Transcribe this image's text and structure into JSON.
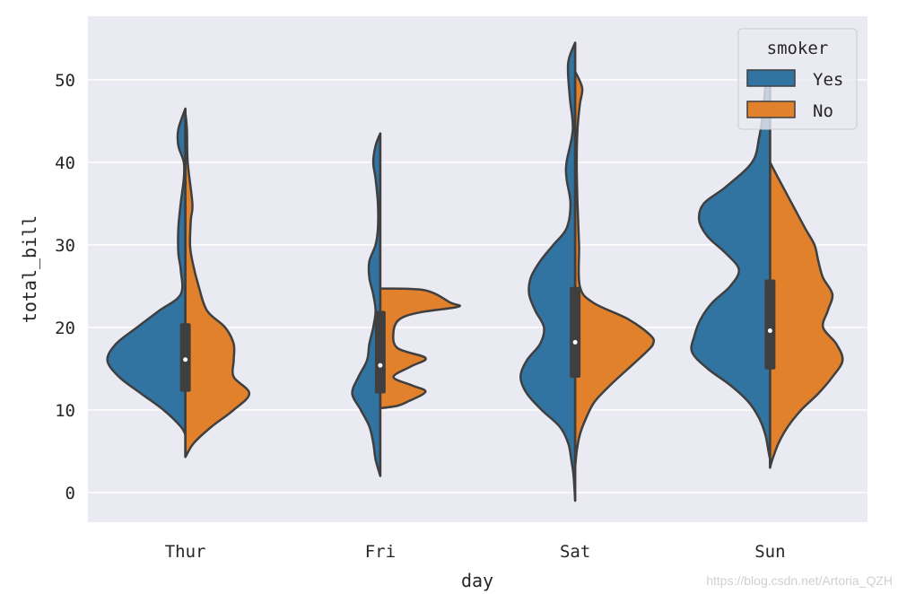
{
  "chart_data": {
    "type": "violin",
    "split": true,
    "xlabel": "day",
    "ylabel": "total_bill",
    "categories": [
      "Thur",
      "Fri",
      "Sat",
      "Sun"
    ],
    "yticks": [
      0,
      10,
      20,
      30,
      40,
      50
    ],
    "ylim": [
      -3.6,
      57.7
    ],
    "grid": true,
    "legend": {
      "title": "smoker",
      "placement": "top-right",
      "entries": [
        "Yes",
        "No"
      ]
    },
    "colors": {
      "Yes": "#3274a1",
      "No": "#e1812c",
      "edge": "#3f3f3f",
      "background": "#eaeaf2"
    },
    "density_note": "relative density, percent of max",
    "violins": [
      {
        "day": "Thur",
        "Yes": [
          [
            46.5,
            0
          ],
          [
            44,
            9
          ],
          [
            42,
            9
          ],
          [
            40,
            2
          ],
          [
            38,
            2
          ],
          [
            35,
            6
          ],
          [
            32,
            9
          ],
          [
            29,
            9
          ],
          [
            27,
            6
          ],
          [
            24,
            6
          ],
          [
            22,
            34
          ],
          [
            20,
            62
          ],
          [
            18,
            89
          ],
          [
            16,
            100
          ],
          [
            14,
            85
          ],
          [
            12,
            57
          ],
          [
            10,
            28
          ],
          [
            8,
            6
          ],
          [
            7,
            0
          ]
        ],
        "No": [
          [
            46,
            0
          ],
          [
            44,
            2
          ],
          [
            40,
            3
          ],
          [
            35,
            9
          ],
          [
            33,
            7
          ],
          [
            30,
            6
          ],
          [
            28,
            9
          ],
          [
            25,
            17
          ],
          [
            22,
            28
          ],
          [
            20,
            51
          ],
          [
            18,
            62
          ],
          [
            16,
            62
          ],
          [
            14,
            62
          ],
          [
            12,
            82
          ],
          [
            10,
            62
          ],
          [
            8,
            34
          ],
          [
            6,
            11
          ],
          [
            4.3,
            0
          ]
        ],
        "box": {
          "min": 4.3,
          "q1": 12.2,
          "median": 16.1,
          "q3": 20.5,
          "max": 46.5
        }
      },
      {
        "day": "Fri",
        "Yes": [
          [
            43.5,
            0
          ],
          [
            42,
            6
          ],
          [
            40,
            9
          ],
          [
            38,
            6
          ],
          [
            35,
            3
          ],
          [
            32,
            3
          ],
          [
            30,
            6
          ],
          [
            28,
            14
          ],
          [
            26,
            14
          ],
          [
            24,
            9
          ],
          [
            22,
            6
          ],
          [
            20,
            9
          ],
          [
            18,
            14
          ],
          [
            16,
            17
          ],
          [
            14,
            28
          ],
          [
            12,
            36
          ],
          [
            10,
            25
          ],
          [
            8,
            14
          ],
          [
            6,
            9
          ],
          [
            4,
            6
          ],
          [
            2,
            0
          ]
        ],
        "No": [
          [
            24.7,
            0
          ],
          [
            24.5,
            57
          ],
          [
            23,
            90
          ],
          [
            22.5,
            100
          ],
          [
            21.8,
            50
          ],
          [
            21,
            25
          ],
          [
            19.5,
            17
          ],
          [
            17.5,
            22
          ],
          [
            16.3,
            58
          ],
          [
            15.3,
            40
          ],
          [
            14,
            17
          ],
          [
            13,
            40
          ],
          [
            12.2,
            58
          ],
          [
            11,
            35
          ],
          [
            10.5,
            22
          ],
          [
            10.2,
            0
          ]
        ],
        "box": {
          "min": 2,
          "q1": 12,
          "median": 15.4,
          "q3": 22,
          "max": 43.5
        }
      },
      {
        "day": "Sat",
        "Yes": [
          [
            54.5,
            0
          ],
          [
            52,
            9
          ],
          [
            48,
            7
          ],
          [
            44,
            3
          ],
          [
            40,
            11
          ],
          [
            38,
            11
          ],
          [
            35,
            6
          ],
          [
            32,
            11
          ],
          [
            30,
            28
          ],
          [
            28,
            45
          ],
          [
            26,
            57
          ],
          [
            24,
            59
          ],
          [
            22,
            51
          ],
          [
            20,
            40
          ],
          [
            18,
            45
          ],
          [
            16,
            62
          ],
          [
            14,
            70
          ],
          [
            12,
            62
          ],
          [
            10,
            43
          ],
          [
            8,
            20
          ],
          [
            6,
            9
          ],
          [
            4,
            5
          ],
          [
            2,
            2
          ],
          [
            -1,
            0
          ]
        ],
        "No": [
          [
            51,
            0
          ],
          [
            49,
            9
          ],
          [
            47,
            6
          ],
          [
            44,
            3
          ],
          [
            40,
            2
          ],
          [
            35,
            3
          ],
          [
            30,
            5
          ],
          [
            25,
            6
          ],
          [
            23,
            23
          ],
          [
            21,
            68
          ],
          [
            19,
            97
          ],
          [
            18,
            100
          ],
          [
            17,
            91
          ],
          [
            15,
            68
          ],
          [
            13,
            45
          ],
          [
            11,
            25
          ],
          [
            9,
            14
          ],
          [
            7,
            6
          ],
          [
            5,
            2
          ],
          [
            3,
            0
          ]
        ],
        "box": {
          "min": -1,
          "q1": 13.9,
          "median": 18.2,
          "q3": 24.9,
          "max": 54.5
        }
      },
      {
        "day": "Sun",
        "Yes": [
          [
            51,
            0
          ],
          [
            49,
            6
          ],
          [
            46,
            9
          ],
          [
            43,
            14
          ],
          [
            40,
            23
          ],
          [
            37,
            57
          ],
          [
            35,
            85
          ],
          [
            33,
            91
          ],
          [
            31,
            80
          ],
          [
            29,
            57
          ],
          [
            27,
            40
          ],
          [
            25,
            51
          ],
          [
            23,
            74
          ],
          [
            21,
            89
          ],
          [
            19,
            97
          ],
          [
            17,
            100
          ],
          [
            15,
            80
          ],
          [
            13,
            51
          ],
          [
            11,
            28
          ],
          [
            9,
            14
          ],
          [
            7,
            6
          ],
          [
            5,
            2
          ],
          [
            4,
            0
          ]
        ],
        "No": [
          [
            40,
            0
          ],
          [
            38,
            11
          ],
          [
            35,
            28
          ],
          [
            32,
            45
          ],
          [
            30,
            57
          ],
          [
            28,
            62
          ],
          [
            26,
            68
          ],
          [
            24,
            80
          ],
          [
            22,
            74
          ],
          [
            20,
            68
          ],
          [
            18,
            85
          ],
          [
            16,
            93
          ],
          [
            14,
            80
          ],
          [
            12,
            62
          ],
          [
            10,
            40
          ],
          [
            8,
            23
          ],
          [
            6,
            11
          ],
          [
            4,
            3
          ],
          [
            3,
            0
          ]
        ],
        "box": {
          "min": 3,
          "q1": 14.9,
          "median": 19.6,
          "q3": 25.8,
          "max": 51
        }
      }
    ]
  },
  "watermark": "https://blog.csdn.net/Artoria_QZH"
}
